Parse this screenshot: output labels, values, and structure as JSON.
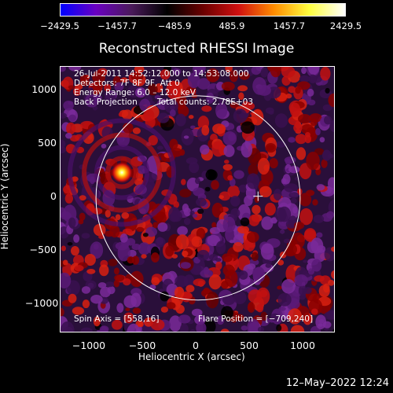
{
  "colorbar": {
    "ticks": [
      "−2429.5",
      "−1457.7",
      "−485.9",
      "485.9",
      "1457.7",
      "2429.5"
    ],
    "colors": [
      "#0000ff",
      "#6a00c0",
      "#4a1a5a",
      "#000000",
      "#6a0000",
      "#d01010",
      "#ff8c00",
      "#ffff40",
      "#ffffff"
    ]
  },
  "plot": {
    "title": "Reconstructed RHESSI Image",
    "info_lines": [
      "26-Jul-2011 14:52:12.000 to 14:53:08.000",
      "Detectors: 7F 8F 9F, Att 0",
      "Energy Range: 6.0 – 12.0 keV"
    ],
    "method": "Back Projection",
    "total_counts": "Total counts: 2.78E+03",
    "spin_axis": "Spin Axis = [558,16]",
    "flare_position": "Flare Position = [−709,240]",
    "xlabel": "Heliocentric X (arcsec)",
    "ylabel": "Heliocentric Y (arcsec)",
    "xticks": [
      "−1000",
      "−500",
      "0",
      "500",
      "1000"
    ],
    "yticks": [
      "1000",
      "500",
      "0",
      "−500",
      "−1000"
    ],
    "x_range": [
      -1280,
      1280
    ],
    "y_range": [
      -1280,
      1240
    ],
    "solar_radius_arcsec": 950,
    "spin_axis_point": [
      558,
      16
    ],
    "flare_point": [
      -709,
      240
    ]
  },
  "footer": {
    "date": "12–May–2022 12:24"
  }
}
